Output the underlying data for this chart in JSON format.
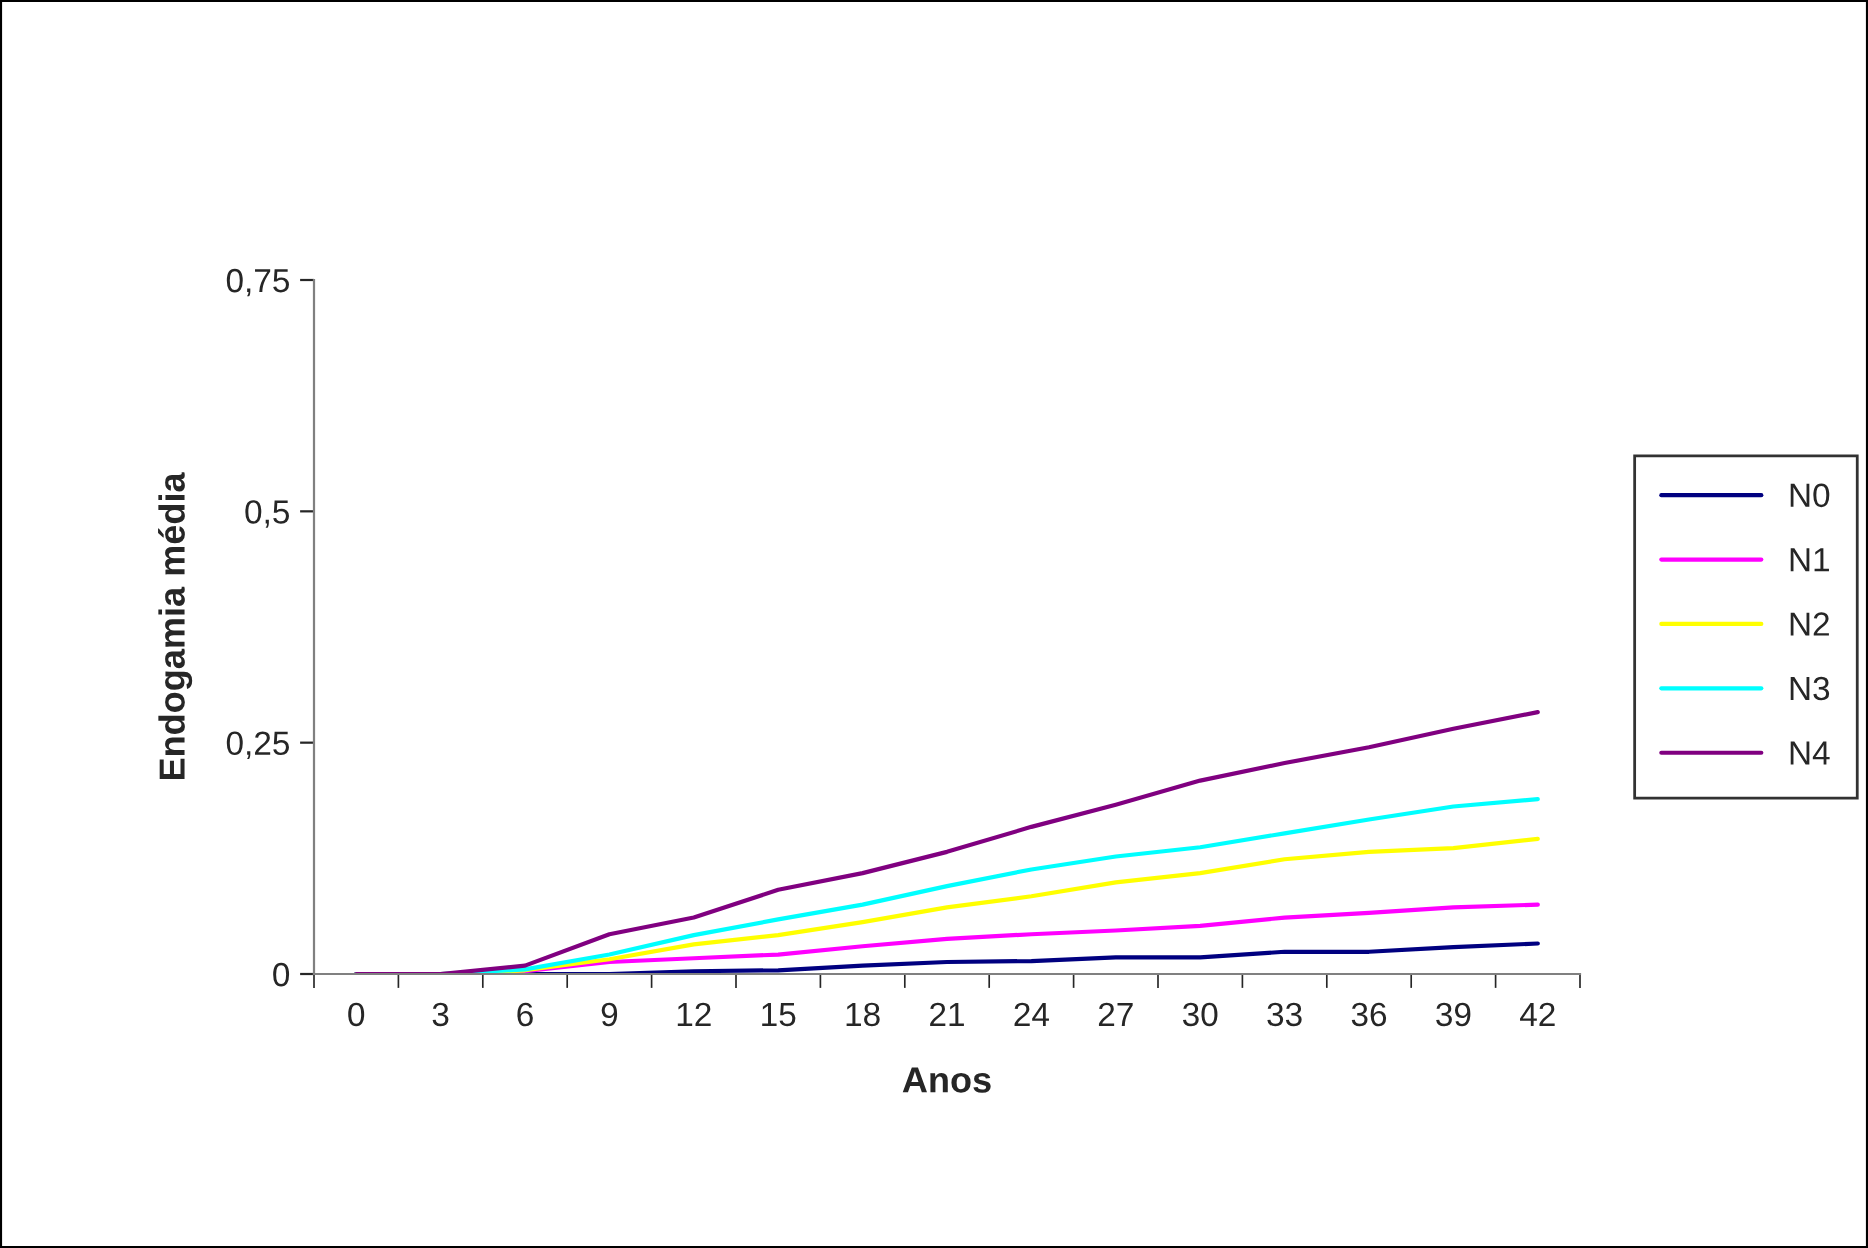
{
  "chart_data": {
    "type": "line",
    "xlabel": "Anos",
    "ylabel": "Endogamia média",
    "categories": [
      "0",
      "3",
      "6",
      "9",
      "12",
      "15",
      "18",
      "21",
      "24",
      "27",
      "30",
      "33",
      "36",
      "39",
      "42"
    ],
    "series": [
      {
        "name": "N0",
        "color": "#000080",
        "values": [
          0,
          0,
          0,
          0,
          0.003,
          0.004,
          0.009,
          0.013,
          0.014,
          0.018,
          0.018,
          0.024,
          0.024,
          0.029,
          0.033
        ]
      },
      {
        "name": "N1",
        "color": "#ff00ff",
        "values": [
          0,
          0,
          0.003,
          0.013,
          0.017,
          0.021,
          0.03,
          0.038,
          0.043,
          0.047,
          0.052,
          0.061,
          0.066,
          0.072,
          0.075
        ]
      },
      {
        "name": "N2",
        "color": "#ffff00",
        "values": [
          0,
          0,
          0.004,
          0.016,
          0.032,
          0.042,
          0.056,
          0.072,
          0.084,
          0.099,
          0.109,
          0.124,
          0.132,
          0.136,
          0.146
        ]
      },
      {
        "name": "N3",
        "color": "#00ffff",
        "values": [
          0,
          0,
          0.005,
          0.021,
          0.042,
          0.059,
          0.075,
          0.095,
          0.113,
          0.127,
          0.137,
          0.152,
          0.167,
          0.181,
          0.189
        ]
      },
      {
        "name": "N4",
        "color": "#800080",
        "values": [
          0,
          0,
          0.009,
          0.043,
          0.061,
          0.091,
          0.109,
          0.132,
          0.159,
          0.183,
          0.209,
          0.228,
          0.245,
          0.265,
          0.283
        ]
      }
    ],
    "ylim": [
      0,
      0.75
    ],
    "yticks": [
      {
        "value": 0,
        "label": "0"
      },
      {
        "value": 0.25,
        "label": "0,25"
      },
      {
        "value": 0.5,
        "label": "0,5"
      },
      {
        "value": 0.75,
        "label": "0,75"
      }
    ],
    "grid": false,
    "legend": "right",
    "marker": "none",
    "line_style": "solid"
  }
}
